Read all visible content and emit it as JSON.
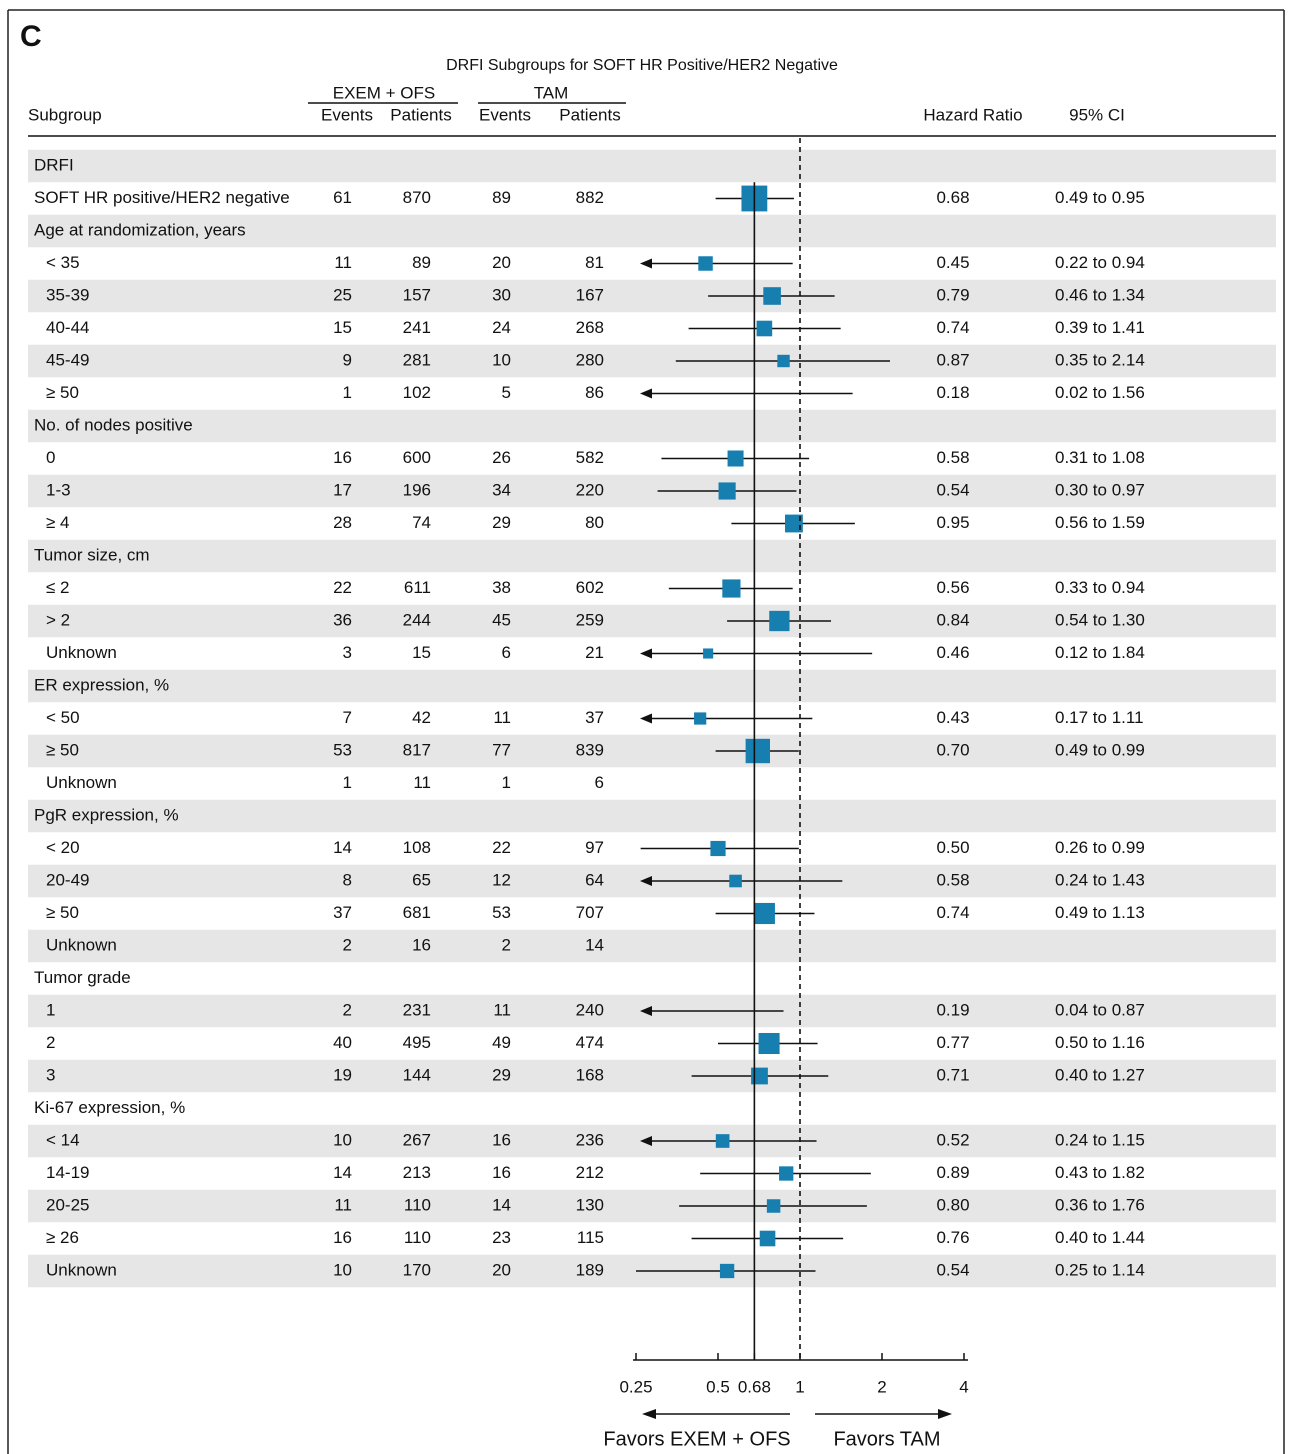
{
  "chart_data": {
    "type": "forest",
    "panel": "C",
    "title": "DRFI Subgroups for SOFT HR Positive/HER2 Negative",
    "columns": {
      "subgroup": "Subgroup",
      "exem": "EXEM + OFS",
      "tam": "TAM",
      "events": "Events",
      "patients": "Patients",
      "hr": "Hazard Ratio",
      "ci": "95% CI"
    },
    "log_x": true,
    "xlim": [
      0.25,
      4
    ],
    "xticks": [
      0.25,
      0.5,
      0.68,
      1,
      2,
      4
    ],
    "reference_lines": [
      {
        "value": 0.68,
        "style": "solid"
      },
      {
        "value": 1,
        "style": "dashed"
      }
    ],
    "marker_color": "#177fb0",
    "shade_color": "#e6e6e6",
    "favors_left": "Favors EXEM + OFS",
    "favors_right": "Favors TAM",
    "rows": [
      {
        "label": "DRFI"
      },
      {
        "label": "SOFT HR positive/HER2 negative",
        "exem_events": 61,
        "exem_patients": 870,
        "tam_events": 89,
        "tam_patients": 882,
        "hr": 0.68,
        "ci_low": 0.49,
        "ci_high": 0.95,
        "ci": "0.49 to 0.95"
      },
      {
        "label": "Age at randomization, years"
      },
      {
        "label": "< 35",
        "exem_events": 11,
        "exem_patients": 89,
        "tam_events": 20,
        "tam_patients": 81,
        "hr": 0.45,
        "ci_low": 0.22,
        "ci_high": 0.94,
        "ci": "0.22 to 0.94"
      },
      {
        "label": "35-39",
        "exem_events": 25,
        "exem_patients": 157,
        "tam_events": 30,
        "tam_patients": 167,
        "hr": 0.79,
        "ci_low": 0.46,
        "ci_high": 1.34,
        "ci": "0.46 to 1.34"
      },
      {
        "label": "40-44",
        "exem_events": 15,
        "exem_patients": 241,
        "tam_events": 24,
        "tam_patients": 268,
        "hr": 0.74,
        "ci_low": 0.39,
        "ci_high": 1.41,
        "ci": "0.39 to 1.41"
      },
      {
        "label": "45-49",
        "exem_events": 9,
        "exem_patients": 281,
        "tam_events": 10,
        "tam_patients": 280,
        "hr": 0.87,
        "ci_low": 0.35,
        "ci_high": 2.14,
        "ci": "0.35 to 2.14"
      },
      {
        "label": "≥ 50",
        "exem_events": 1,
        "exem_patients": 102,
        "tam_events": 5,
        "tam_patients": 86,
        "hr": 0.18,
        "ci_low": 0.02,
        "ci_high": 1.56,
        "ci": "0.02 to 1.56"
      },
      {
        "label": "No. of nodes positive"
      },
      {
        "label": "0",
        "exem_events": 16,
        "exem_patients": 600,
        "tam_events": 26,
        "tam_patients": 582,
        "hr": 0.58,
        "ci_low": 0.31,
        "ci_high": 1.08,
        "ci": "0.31 to 1.08"
      },
      {
        "label": "1-3",
        "exem_events": 17,
        "exem_patients": 196,
        "tam_events": 34,
        "tam_patients": 220,
        "hr": 0.54,
        "ci_low": 0.3,
        "ci_high": 0.97,
        "ci": "0.30 to 0.97"
      },
      {
        "label": "≥ 4",
        "exem_events": 28,
        "exem_patients": 74,
        "tam_events": 29,
        "tam_patients": 80,
        "hr": 0.95,
        "ci_low": 0.56,
        "ci_high": 1.59,
        "ci": "0.56 to 1.59"
      },
      {
        "label": "Tumor size, cm"
      },
      {
        "label": "≤ 2",
        "exem_events": 22,
        "exem_patients": 611,
        "tam_events": 38,
        "tam_patients": 602,
        "hr": 0.56,
        "ci_low": 0.33,
        "ci_high": 0.94,
        "ci": "0.33 to 0.94"
      },
      {
        "label": "> 2",
        "exem_events": 36,
        "exem_patients": 244,
        "tam_events": 45,
        "tam_patients": 259,
        "hr": 0.84,
        "ci_low": 0.54,
        "ci_high": 1.3,
        "ci": "0.54 to 1.30"
      },
      {
        "label": "Unknown",
        "exem_events": 3,
        "exem_patients": 15,
        "tam_events": 6,
        "tam_patients": 21,
        "hr": 0.46,
        "ci_low": 0.12,
        "ci_high": 1.84,
        "ci": "0.12 to 1.84"
      },
      {
        "label": "ER expression, %"
      },
      {
        "label": "< 50",
        "exem_events": 7,
        "exem_patients": 42,
        "tam_events": 11,
        "tam_patients": 37,
        "hr": 0.43,
        "ci_low": 0.17,
        "ci_high": 1.11,
        "ci": "0.17 to 1.11"
      },
      {
        "label": "≥ 50",
        "exem_events": 53,
        "exem_patients": 817,
        "tam_events": 77,
        "tam_patients": 839,
        "hr": 0.7,
        "hr_label": "0.70",
        "ci_low": 0.49,
        "ci_high": 0.99,
        "ci": "0.49 to 0.99"
      },
      {
        "label": "Unknown",
        "exem_events": 1,
        "exem_patients": 11,
        "tam_events": 1,
        "tam_patients": 6
      },
      {
        "label": "PgR expression, %"
      },
      {
        "label": "< 20",
        "exem_events": 14,
        "exem_patients": 108,
        "tam_events": 22,
        "tam_patients": 97,
        "hr": 0.5,
        "hr_label": "0.50",
        "ci_low": 0.26,
        "ci_high": 0.99,
        "ci": "0.26 to 0.99"
      },
      {
        "label": "20-49",
        "exem_events": 8,
        "exem_patients": 65,
        "tam_events": 12,
        "tam_patients": 64,
        "hr": 0.58,
        "ci_low": 0.24,
        "ci_high": 1.43,
        "ci": "0.24 to 1.43"
      },
      {
        "label": "≥ 50",
        "exem_events": 37,
        "exem_patients": 681,
        "tam_events": 53,
        "tam_patients": 707,
        "hr": 0.74,
        "ci_low": 0.49,
        "ci_high": 1.13,
        "ci": "0.49 to 1.13"
      },
      {
        "label": "Unknown",
        "exem_events": 2,
        "exem_patients": 16,
        "tam_events": 2,
        "tam_patients": 14
      },
      {
        "label": "Tumor grade"
      },
      {
        "label": "1",
        "exem_events": 2,
        "exem_patients": 231,
        "tam_events": 11,
        "tam_patients": 240,
        "hr": 0.19,
        "ci_low": 0.04,
        "ci_high": 0.87,
        "ci": "0.04 to 0.87"
      },
      {
        "label": "2",
        "exem_events": 40,
        "exem_patients": 495,
        "tam_events": 49,
        "tam_patients": 474,
        "hr": 0.77,
        "ci_low": 0.5,
        "ci_high": 1.16,
        "ci": "0.50 to 1.16"
      },
      {
        "label": "3",
        "exem_events": 19,
        "exem_patients": 144,
        "tam_events": 29,
        "tam_patients": 168,
        "hr": 0.71,
        "ci_low": 0.4,
        "ci_high": 1.27,
        "ci": "0.40 to 1.27"
      },
      {
        "label": "Ki-67 expression, %"
      },
      {
        "label": "< 14",
        "exem_events": 10,
        "exem_patients": 267,
        "tam_events": 16,
        "tam_patients": 236,
        "hr": 0.52,
        "ci_low": 0.24,
        "ci_high": 1.15,
        "ci": "0.24 to 1.15"
      },
      {
        "label": "14-19",
        "exem_events": 14,
        "exem_patients": 213,
        "tam_events": 16,
        "tam_patients": 212,
        "hr": 0.89,
        "ci_low": 0.43,
        "ci_high": 1.82,
        "ci": "0.43 to 1.82"
      },
      {
        "label": "20-25",
        "exem_events": 11,
        "exem_patients": 110,
        "tam_events": 14,
        "tam_patients": 130,
        "hr": 0.8,
        "hr_label": "0.80",
        "ci_low": 0.36,
        "ci_high": 1.76,
        "ci": "0.36 to 1.76"
      },
      {
        "label": "≥ 26",
        "exem_events": 16,
        "exem_patients": 110,
        "tam_events": 23,
        "tam_patients": 115,
        "hr": 0.76,
        "ci_low": 0.4,
        "ci_high": 1.44,
        "ci": "0.40 to 1.44"
      },
      {
        "label": "Unknown",
        "exem_events": 10,
        "exem_patients": 170,
        "tam_events": 20,
        "tam_patients": 189,
        "hr": 0.54,
        "ci_low": 0.25,
        "ci_high": 1.14,
        "ci": "0.25 to 1.14"
      }
    ]
  }
}
